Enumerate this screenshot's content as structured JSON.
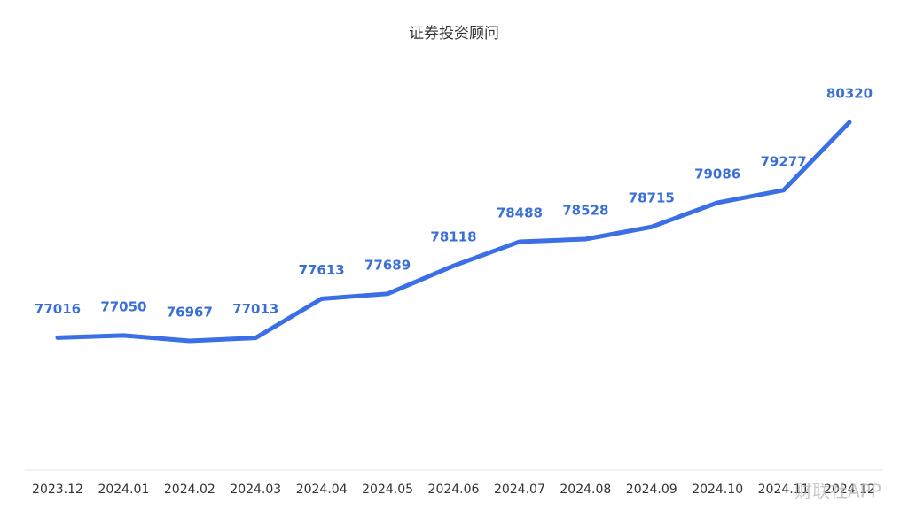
{
  "chart_data": {
    "type": "line",
    "title": "证券投资顾问",
    "categories": [
      "2023.12",
      "2024.01",
      "2024.02",
      "2024.03",
      "2024.04",
      "2024.05",
      "2024.06",
      "2024.07",
      "2024.08",
      "2024.09",
      "2024.10",
      "2024.11",
      "2024.12"
    ],
    "values": [
      77016,
      77050,
      76967,
      77013,
      77613,
      77689,
      78118,
      78488,
      78528,
      78715,
      79086,
      79277,
      80320
    ],
    "color": "#3b6fe6",
    "label_color": "#3a6fd8",
    "watermark": "财联社APP"
  }
}
